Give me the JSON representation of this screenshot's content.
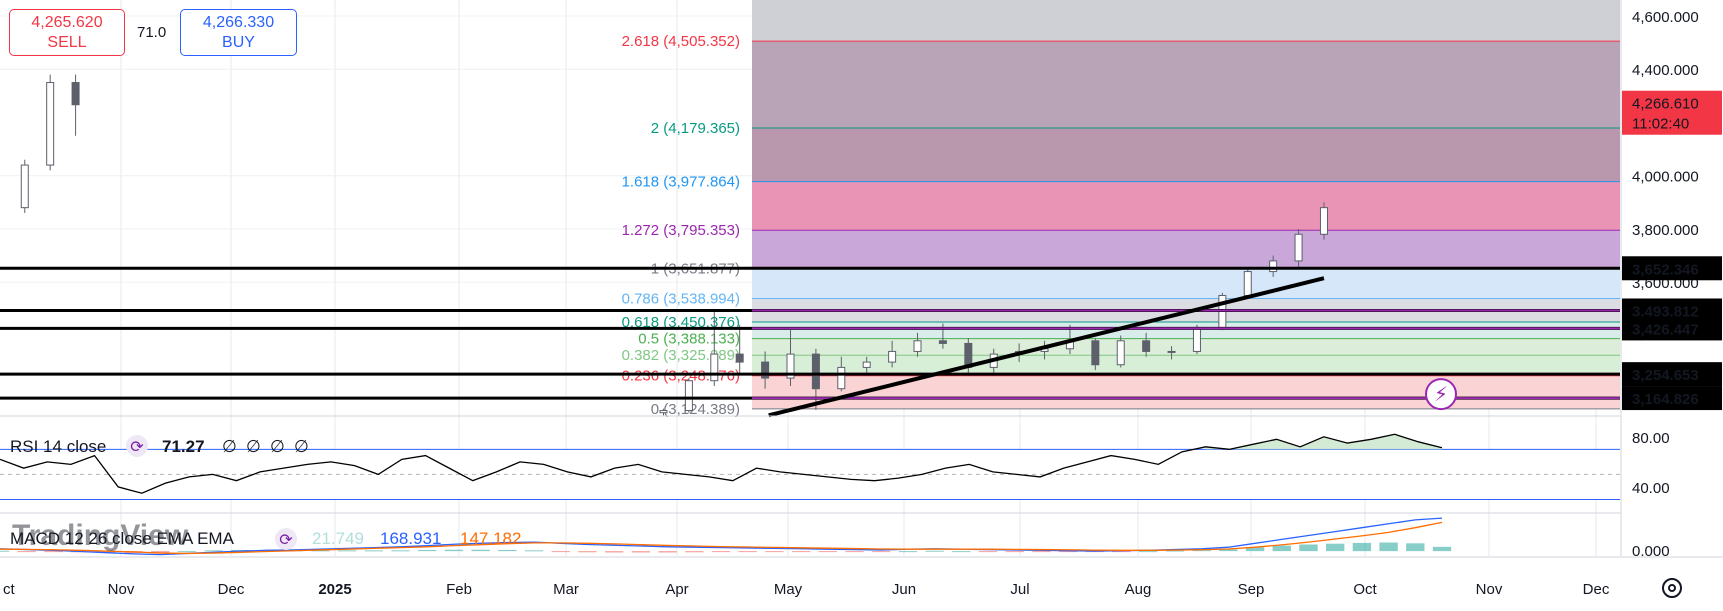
{
  "trade": {
    "sell_price": "4,265.620",
    "sell_label": "SELL",
    "buy_price": "4,266.330",
    "buy_label": "BUY",
    "spread": "71.0"
  },
  "chart_data": [
    {
      "type": "candlestick",
      "title": "",
      "x_ticks": [
        "ct",
        "Nov",
        "Dec",
        "2025",
        "Feb",
        "Mar",
        "Apr",
        "May",
        "Jun",
        "Jul",
        "Aug",
        "Sep",
        "Oct",
        "Nov",
        "Dec"
      ],
      "y_ticks": [
        "4,600.000",
        "4,400.000",
        "4,000.000",
        "3,800.000",
        "3,600.000"
      ],
      "ylim": [
        3105,
        4660
      ],
      "last_price": {
        "price": "4,266.610",
        "countdown": "11:02:40",
        "value": 4266.61
      },
      "price_labels": [
        {
          "text": "3,652.346",
          "value": 3652.346
        },
        {
          "text": "3,493.812",
          "value": 3493.812
        },
        {
          "text": "3,426.447",
          "value": 3426.447
        },
        {
          "text": "3,254.653",
          "value": 3254.653
        },
        {
          "text": "3,164.826",
          "value": 3164.826
        }
      ],
      "fib_levels": [
        {
          "label": "2.618 (4,505.352)",
          "value": 4505.352,
          "color": "#f23645"
        },
        {
          "label": "2 (4,179.365)",
          "value": 4179.365,
          "color": "#089981"
        },
        {
          "label": "1.618 (3,977.864)",
          "value": 3977.864,
          "color": "#2196f3"
        },
        {
          "label": "1.272 (3,795.353)",
          "value": 3795.353,
          "color": "#9c27b0"
        },
        {
          "label": "1 (3,651.877)",
          "value": 3651.877,
          "color": "#787b86"
        },
        {
          "label": "0.786 (3,538.994)",
          "value": 3538.994,
          "color": "#64b5f6"
        },
        {
          "label": "0.618 (3,450.376)",
          "value": 3450.376,
          "color": "#089981"
        },
        {
          "label": "0.5 (3,388.133)",
          "value": 3388.133,
          "color": "#4caf50"
        },
        {
          "label": "0.382 (3,325.889)",
          "value": 3325.889,
          "color": "#81c784"
        },
        {
          "label": "0.236 (3,248.876)",
          "value": 3248.876,
          "color": "#f23645"
        },
        {
          "label": "0 (3,124.389)",
          "value": 3124.389,
          "color": "#787b86"
        }
      ],
      "horizontal_lines": [
        3652.346,
        3493.812,
        3426.447,
        3254.653,
        3164.826
      ],
      "trendline": [
        {
          "x": "Apr 30",
          "y": 3100
        },
        {
          "x": "Sep 30",
          "y": 3615
        }
      ],
      "candles_weekly_approx": [
        {
          "x": "Apr 1",
          "o": 3110,
          "h": 3125,
          "l": 3100,
          "c": 3118
        },
        {
          "x": "Apr 8",
          "o": 3118,
          "h": 3240,
          "l": 3110,
          "c": 3230
        },
        {
          "x": "Apr 15",
          "o": 3230,
          "h": 3500,
          "l": 3210,
          "c": 3330
        },
        {
          "x": "Apr 22",
          "o": 3330,
          "h": 3440,
          "l": 3260,
          "c": 3300
        },
        {
          "x": "Apr 29",
          "o": 3300,
          "h": 3340,
          "l": 3200,
          "c": 3240
        },
        {
          "x": "May 6",
          "o": 3240,
          "h": 3420,
          "l": 3210,
          "c": 3330
        },
        {
          "x": "May 13",
          "o": 3330,
          "h": 3350,
          "l": 3120,
          "c": 3200
        },
        {
          "x": "May 20",
          "o": 3200,
          "h": 3320,
          "l": 3190,
          "c": 3280
        },
        {
          "x": "May 27",
          "o": 3280,
          "h": 3320,
          "l": 3260,
          "c": 3300
        },
        {
          "x": "Jun 3",
          "o": 3300,
          "h": 3380,
          "l": 3280,
          "c": 3340
        },
        {
          "x": "Jun 10",
          "o": 3340,
          "h": 3410,
          "l": 3320,
          "c": 3380
        },
        {
          "x": "Jun 17",
          "o": 3380,
          "h": 3445,
          "l": 3350,
          "c": 3370
        },
        {
          "x": "Jun 24",
          "o": 3370,
          "h": 3390,
          "l": 3260,
          "c": 3280
        },
        {
          "x": "Jul 1",
          "o": 3280,
          "h": 3350,
          "l": 3260,
          "c": 3330
        },
        {
          "x": "Jul 8",
          "o": 3330,
          "h": 3370,
          "l": 3300,
          "c": 3340
        },
        {
          "x": "Jul 15",
          "o": 3340,
          "h": 3380,
          "l": 3310,
          "c": 3350
        },
        {
          "x": "Jul 22",
          "o": 3350,
          "h": 3440,
          "l": 3330,
          "c": 3380
        },
        {
          "x": "Jul 29",
          "o": 3380,
          "h": 3390,
          "l": 3270,
          "c": 3290
        },
        {
          "x": "Aug 5",
          "o": 3290,
          "h": 3400,
          "l": 3280,
          "c": 3380
        },
        {
          "x": "Aug 12",
          "o": 3380,
          "h": 3410,
          "l": 3320,
          "c": 3340
        },
        {
          "x": "Aug 19",
          "o": 3340,
          "h": 3360,
          "l": 3310,
          "c": 3340
        },
        {
          "x": "Aug 26",
          "o": 3340,
          "h": 3440,
          "l": 3330,
          "c": 3430
        },
        {
          "x": "Sep 2",
          "o": 3430,
          "h": 3560,
          "l": 3420,
          "c": 3550
        },
        {
          "x": "Sep 9",
          "o": 3550,
          "h": 3650,
          "l": 3540,
          "c": 3640
        },
        {
          "x": "Sep 16",
          "o": 3640,
          "h": 3700,
          "l": 3620,
          "c": 3680
        },
        {
          "x": "Sep 23",
          "o": 3680,
          "h": 3800,
          "l": 3650,
          "c": 3780
        },
        {
          "x": "Sep 30",
          "o": 3780,
          "h": 3900,
          "l": 3760,
          "c": 3880
        },
        {
          "x": "Oct 7",
          "o": 3880,
          "h": 4060,
          "l": 3860,
          "c": 4040
        },
        {
          "x": "Oct 14",
          "o": 4040,
          "h": 4380,
          "l": 4020,
          "c": 4350
        },
        {
          "x": "Oct 21",
          "o": 4350,
          "h": 4380,
          "l": 4150,
          "c": 4266.61
        }
      ]
    },
    {
      "type": "line",
      "title": "RSI 14 close",
      "legend_value": "71.27",
      "legend_extras": [
        "∅",
        "∅",
        "∅",
        "∅"
      ],
      "y_ticks": [
        "80.00",
        "40.00"
      ],
      "bands": [
        70,
        30
      ],
      "ylim": [
        20,
        95
      ],
      "series": [
        {
          "values": [
            62,
            55,
            60,
            58,
            65,
            40,
            35,
            43,
            48,
            50,
            45,
            52,
            55,
            58,
            60,
            57,
            50,
            62,
            65,
            55,
            45,
            52,
            60,
            58,
            52,
            48,
            55,
            58,
            52,
            50,
            48,
            45,
            55,
            52,
            50,
            48,
            46,
            45,
            47,
            50,
            55,
            58,
            52,
            50,
            48,
            55,
            60,
            65,
            62,
            58,
            68,
            72,
            70,
            74,
            78,
            72,
            80,
            75,
            78,
            82,
            76,
            71.27
          ]
        }
      ]
    },
    {
      "type": "line",
      "title": "MACD 12 26 close EMA EMA",
      "legend_values": [
        "21.749",
        "168.931",
        "147.182"
      ],
      "legend_colors": [
        "#b2dfdb",
        "#2962ff",
        "#ff6d00"
      ],
      "y_ticks": [
        "0.000"
      ],
      "ylim": [
        -25,
        190
      ],
      "series": [
        {
          "name": "MACD",
          "values": [
            12,
            8,
            4,
            -2,
            -8,
            -14,
            -18,
            -12,
            -6,
            0,
            4,
            6,
            10,
            14,
            18,
            22,
            28,
            35,
            40,
            44,
            46,
            40,
            34,
            30,
            26,
            22,
            20,
            18,
            16,
            14,
            12,
            10,
            8,
            6,
            10,
            12,
            10,
            8,
            6,
            4,
            2,
            0,
            2,
            4,
            8,
            12,
            20,
            40,
            60,
            80,
            100,
            120,
            140,
            160,
            168.931
          ]
        },
        {
          "name": "Signal",
          "values": [
            10,
            9,
            7,
            4,
            0,
            -4,
            -10,
            -12,
            -10,
            -6,
            -2,
            2,
            6,
            10,
            14,
            18,
            22,
            28,
            33,
            38,
            42,
            42,
            40,
            37,
            33,
            29,
            26,
            23,
            21,
            19,
            17,
            15,
            13,
            11,
            10,
            10,
            10,
            10,
            9,
            8,
            7,
            5,
            4,
            4,
            5,
            7,
            11,
            20,
            32,
            46,
            62,
            78,
            96,
            120,
            147.182
          ]
        },
        {
          "name": "Histogram",
          "values": [
            2,
            -1,
            -3,
            -6,
            -8,
            -10,
            -8,
            0,
            4,
            6,
            6,
            4,
            4,
            4,
            4,
            4,
            6,
            7,
            7,
            6,
            4,
            -2,
            -6,
            -7,
            -7,
            -7,
            -6,
            -5,
            -5,
            -5,
            -5,
            -5,
            -5,
            -5,
            0,
            2,
            0,
            -2,
            -3,
            -4,
            -5,
            -5,
            -2,
            0,
            3,
            5,
            9,
            20,
            28,
            34,
            38,
            42,
            44,
            40,
            21.749
          ]
        }
      ]
    }
  ],
  "watermark": "TradingView",
  "settings_icon": "gear-icon"
}
